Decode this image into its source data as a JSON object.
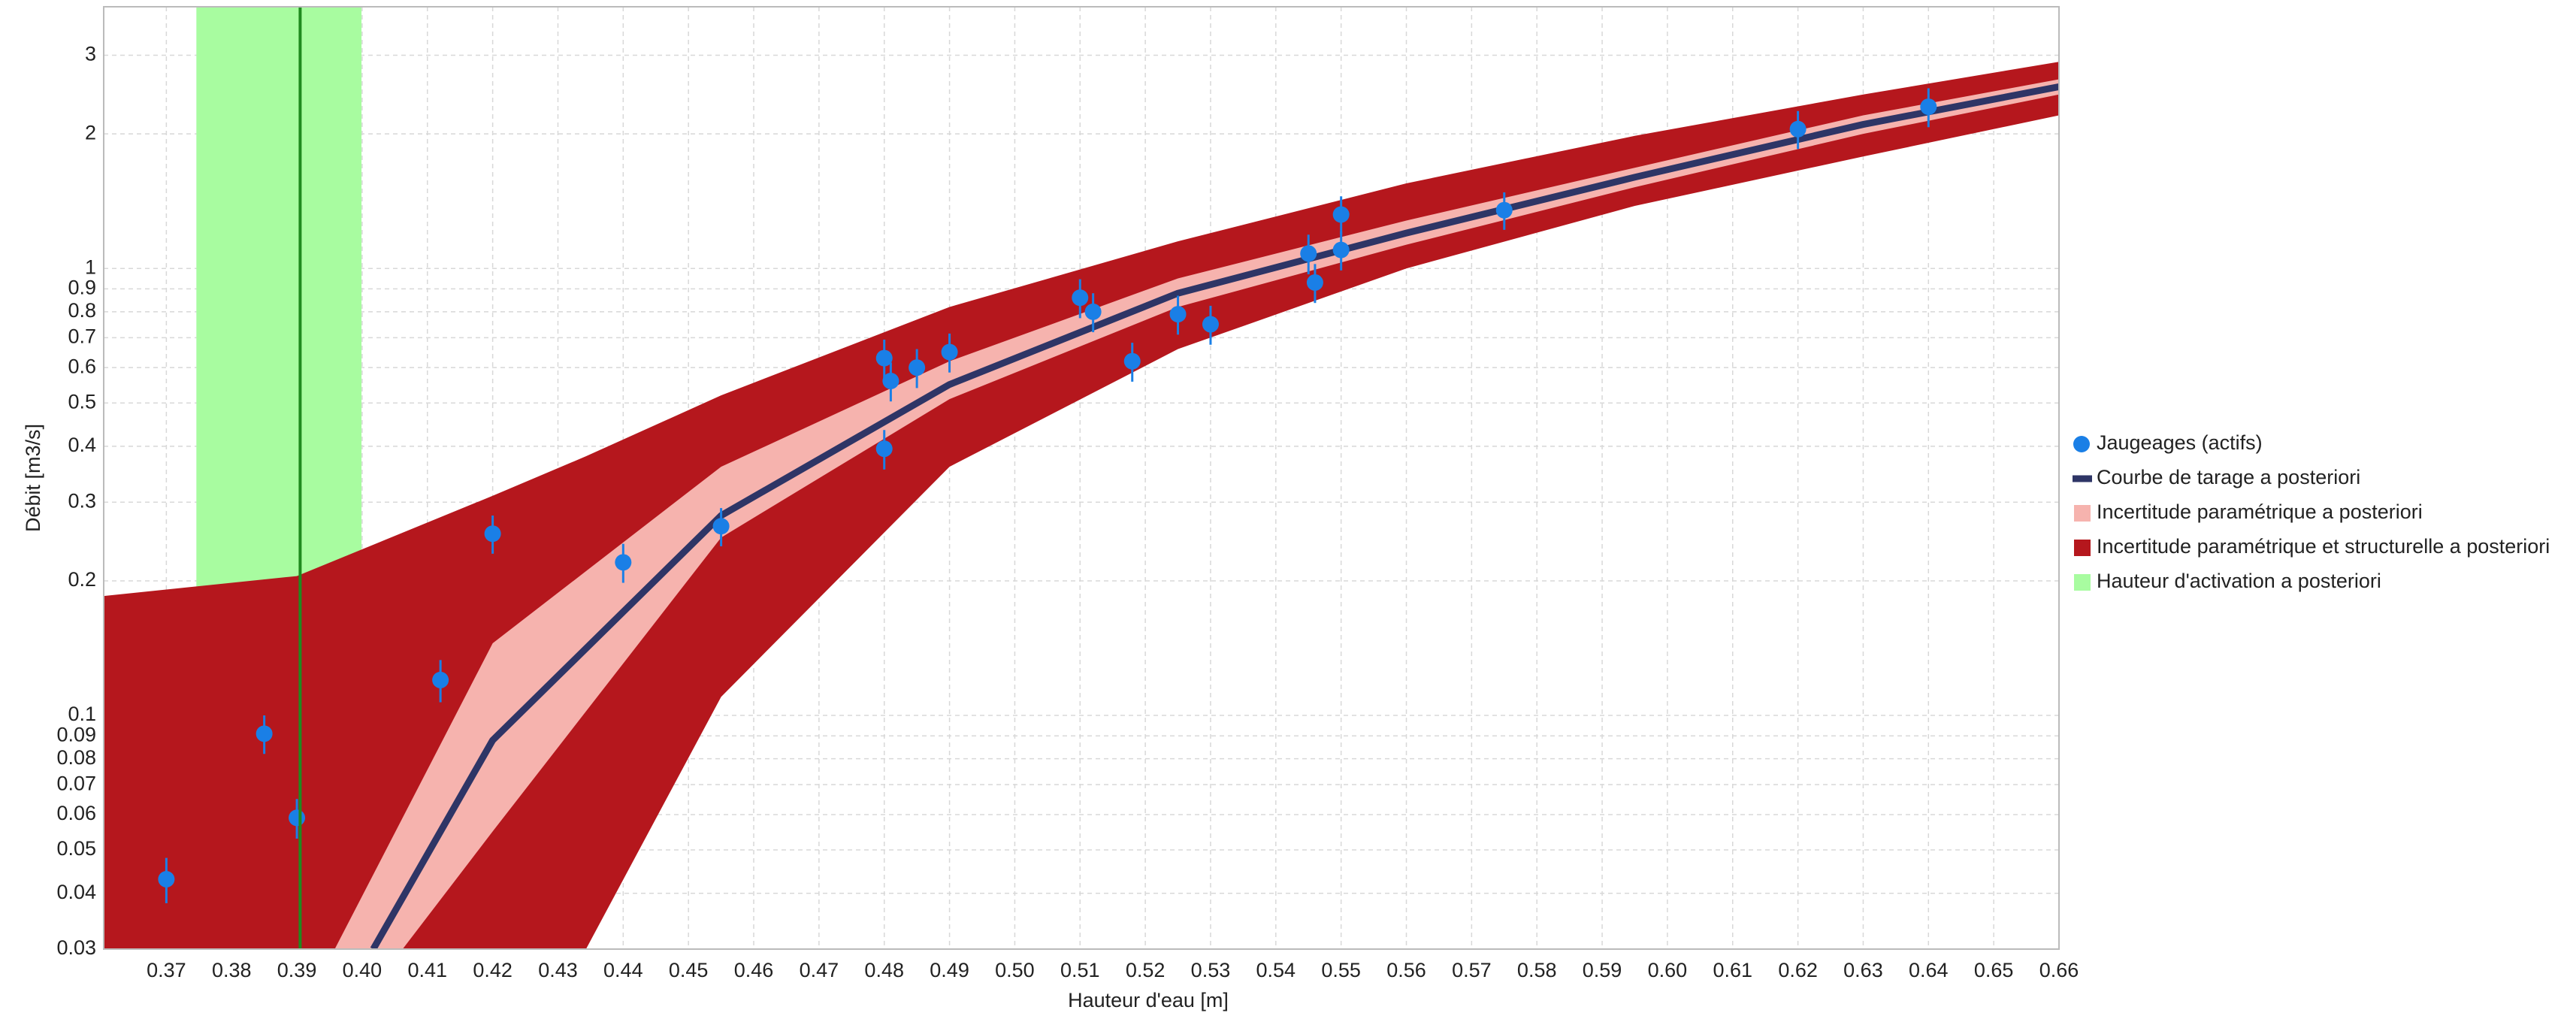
{
  "chart_data": {
    "type": "line",
    "x_label": "Hauteur d'eau [m]",
    "y_label": "Débit [m3/s]",
    "log_y": true,
    "grid": true,
    "legend": "right",
    "xlim": [
      0.3604,
      0.66
    ],
    "ylim": [
      0.03,
      3.85
    ],
    "xticks": [
      0.37,
      0.38,
      0.39,
      {
        "value": 0.4,
        "label": "0.40"
      },
      0.41,
      0.42,
      0.43,
      0.44,
      0.45,
      0.46,
      0.47,
      0.48,
      0.49,
      {
        "value": 0.5,
        "label": "0.50"
      },
      0.51,
      0.52,
      0.53,
      0.54,
      0.55,
      0.56,
      0.57,
      0.58,
      0.59,
      {
        "value": 0.6,
        "label": "0.60"
      },
      0.61,
      0.62,
      0.63,
      0.64,
      0.65,
      0.66
    ],
    "yticks": [
      0.03,
      0.04,
      0.05,
      0.06,
      0.07,
      0.08,
      0.09,
      0.1,
      0.2,
      0.3,
      0.4,
      0.5,
      0.6,
      0.7,
      0.8,
      0.9,
      1,
      2,
      3
    ],
    "series": [
      {
        "name": "Jaugeages (actifs)",
        "kind": "points",
        "color": "#1a7fe6",
        "x": [
          0.37,
          0.385,
          0.39,
          0.412,
          0.42,
          0.44,
          0.455,
          0.48,
          0.481,
          0.485,
          0.48,
          0.49,
          0.51,
          0.512,
          0.518,
          0.525,
          0.53,
          0.545,
          0.546,
          0.55,
          0.55,
          0.575,
          0.62,
          0.64
        ],
        "values": [
          0.043,
          0.091,
          0.059,
          0.12,
          0.255,
          0.22,
          0.265,
          0.63,
          0.56,
          0.6,
          0.395,
          0.65,
          0.86,
          0.8,
          0.62,
          0.79,
          0.75,
          1.08,
          0.93,
          1.32,
          1.1,
          1.35,
          2.05,
          2.3
        ],
        "errors": [
          0.005,
          0.009,
          0.006,
          0.013,
          0.025,
          0.022,
          0.026,
          0.063,
          0.056,
          0.06,
          0.04,
          0.065,
          0.086,
          0.08,
          0.062,
          0.079,
          0.075,
          0.11,
          0.093,
          0.13,
          0.11,
          0.13,
          0.2,
          0.23
        ]
      },
      {
        "name": "Courbe de tarage a posteriori",
        "kind": "line",
        "color": "#2e3566",
        "x": [
          0.4017,
          0.42,
          0.455,
          0.49,
          0.525,
          0.56,
          0.595,
          0.63,
          0.66
        ],
        "values": [
          0.03,
          0.088,
          0.28,
          0.55,
          0.88,
          1.2,
          1.6,
          2.1,
          2.55
        ]
      },
      {
        "name": "Incertitude paramétrique a posteriori",
        "kind": "band",
        "color": "#f6b3ae",
        "x": [
          0.3958,
          0.4062,
          0.42,
          0.455,
          0.49,
          0.525,
          0.56,
          0.595,
          0.63,
          0.66
        ],
        "upper": [
          0.03,
          0.059,
          0.145,
          0.36,
          0.62,
          0.95,
          1.28,
          1.68,
          2.2,
          2.65
        ],
        "lower": [
          0.03,
          0.03,
          0.055,
          0.25,
          0.51,
          0.82,
          1.13,
          1.52,
          2.0,
          2.45
        ]
      },
      {
        "name": "Incertitude paramétrique et structurelle a posteriori",
        "kind": "band",
        "color": "#b5171d",
        "x": [
          0.3604,
          0.39,
          0.42,
          0.4343,
          0.455,
          0.49,
          0.525,
          0.56,
          0.595,
          0.63,
          0.66
        ],
        "upper": [
          0.185,
          0.205,
          0.31,
          0.38,
          0.52,
          0.82,
          1.15,
          1.55,
          1.98,
          2.45,
          2.9
        ],
        "lower": [
          0.03,
          0.03,
          0.03,
          0.03,
          0.11,
          0.36,
          0.66,
          1.0,
          1.38,
          1.78,
          2.2
        ]
      },
      {
        "name": "Hauteur d'activation a posteriori",
        "kind": "vspan",
        "color": "#a8fca0",
        "line_color": "#1f8a1f",
        "x_range": [
          0.3746,
          0.3999
        ],
        "x_line": 0.3905
      }
    ]
  }
}
